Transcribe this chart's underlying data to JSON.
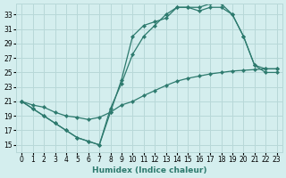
{
  "xlabel": "Humidex (Indice chaleur)",
  "bg_color": "#d4eeee",
  "grid_color": "#b8d8d8",
  "line_color": "#2d7a6e",
  "xlim": [
    -0.5,
    23.5
  ],
  "ylim": [
    14.0,
    34.5
  ],
  "xticks": [
    0,
    1,
    2,
    3,
    4,
    5,
    6,
    7,
    8,
    9,
    10,
    11,
    12,
    13,
    14,
    15,
    16,
    17,
    18,
    19,
    20,
    21,
    22,
    23
  ],
  "yticks": [
    15,
    17,
    19,
    21,
    23,
    25,
    27,
    29,
    31,
    33
  ],
  "line1_x": [
    0,
    1,
    2,
    3,
    4,
    5,
    6,
    7,
    8,
    9,
    10,
    11,
    12,
    13,
    14,
    15,
    16,
    17,
    18,
    19,
    20,
    21,
    22,
    23
  ],
  "line1_y": [
    21,
    20,
    19,
    18,
    17,
    16,
    15.5,
    15,
    19.5,
    24,
    30,
    31.5,
    32,
    32.5,
    34,
    34,
    34,
    34.5,
    34.5,
    33,
    30,
    26,
    25,
    25
  ],
  "line2_x": [
    0,
    1,
    2,
    3,
    4,
    5,
    6,
    7,
    8,
    9,
    10,
    11,
    12,
    13,
    14,
    15,
    16,
    17,
    18,
    19,
    20,
    21,
    22,
    23
  ],
  "line2_y": [
    21,
    20,
    19,
    18,
    17,
    16,
    15.5,
    15,
    20,
    23.5,
    27.5,
    30,
    31.5,
    33,
    34,
    34,
    33.5,
    34,
    34,
    33,
    30,
    26,
    25.5,
    25.5
  ],
  "line3_x": [
    0,
    1,
    2,
    3,
    4,
    5,
    6,
    7,
    8,
    9,
    10,
    11,
    12,
    13,
    14,
    15,
    16,
    17,
    18,
    19,
    20,
    21,
    22,
    23
  ],
  "line3_y": [
    21,
    20.5,
    20.2,
    19.5,
    19.0,
    18.8,
    18.5,
    18.8,
    19.5,
    20.5,
    21,
    21.8,
    22.5,
    23.2,
    23.8,
    24.2,
    24.5,
    24.8,
    25.0,
    25.2,
    25.3,
    25.4,
    25.5,
    25.5
  ]
}
